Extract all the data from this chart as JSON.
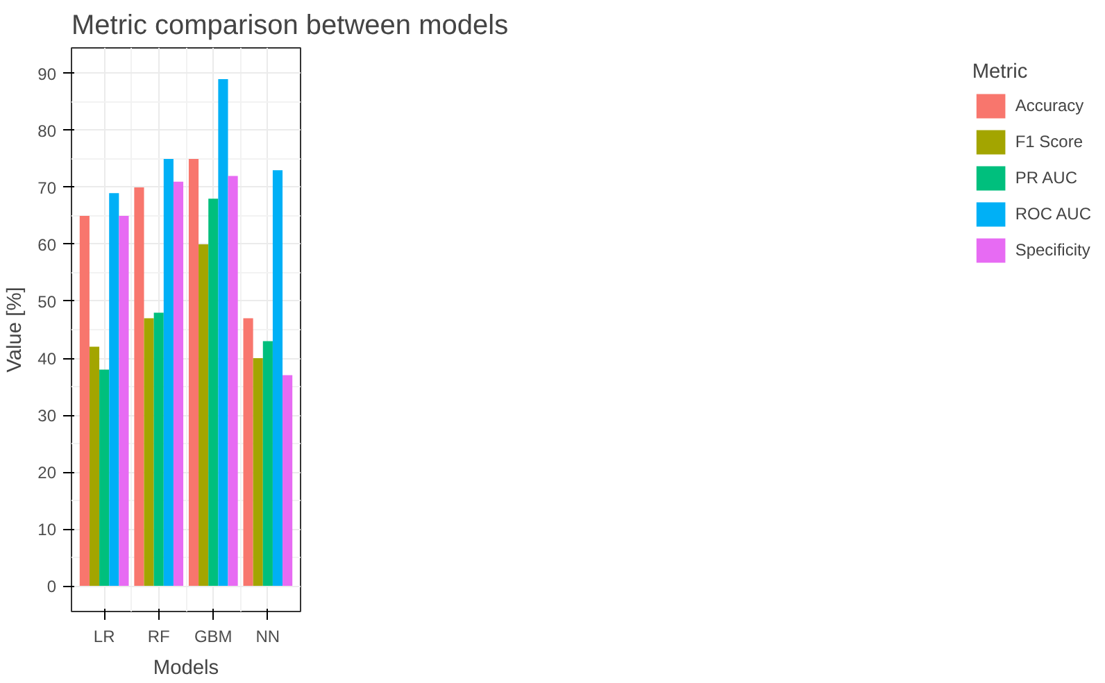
{
  "chart_data": {
    "type": "bar",
    "title": "Metric comparison between models",
    "xlabel": "Models",
    "ylabel": "Value [%]",
    "legend_title": "Metric",
    "categories": [
      "LR",
      "RF",
      "GBM",
      "NN"
    ],
    "series": [
      {
        "name": "Accuracy",
        "color": "#f8766d",
        "values": [
          65,
          70,
          75,
          47
        ]
      },
      {
        "name": "F1 Score",
        "color": "#a3a500",
        "values": [
          42,
          47,
          60,
          40
        ]
      },
      {
        "name": "PR AUC",
        "color": "#00bf7d",
        "values": [
          38,
          48,
          68,
          43
        ]
      },
      {
        "name": "ROC AUC",
        "color": "#00b0f6",
        "values": [
          69,
          75,
          89,
          73
        ]
      },
      {
        "name": "Specificity",
        "color": "#e76bf3",
        "values": [
          65,
          71,
          72,
          37
        ]
      }
    ],
    "ylim": [
      -4.5,
      94.5
    ],
    "yticks": [
      0,
      10,
      20,
      30,
      40,
      50,
      60,
      70,
      80,
      90
    ],
    "grid": true,
    "legend": "right"
  }
}
